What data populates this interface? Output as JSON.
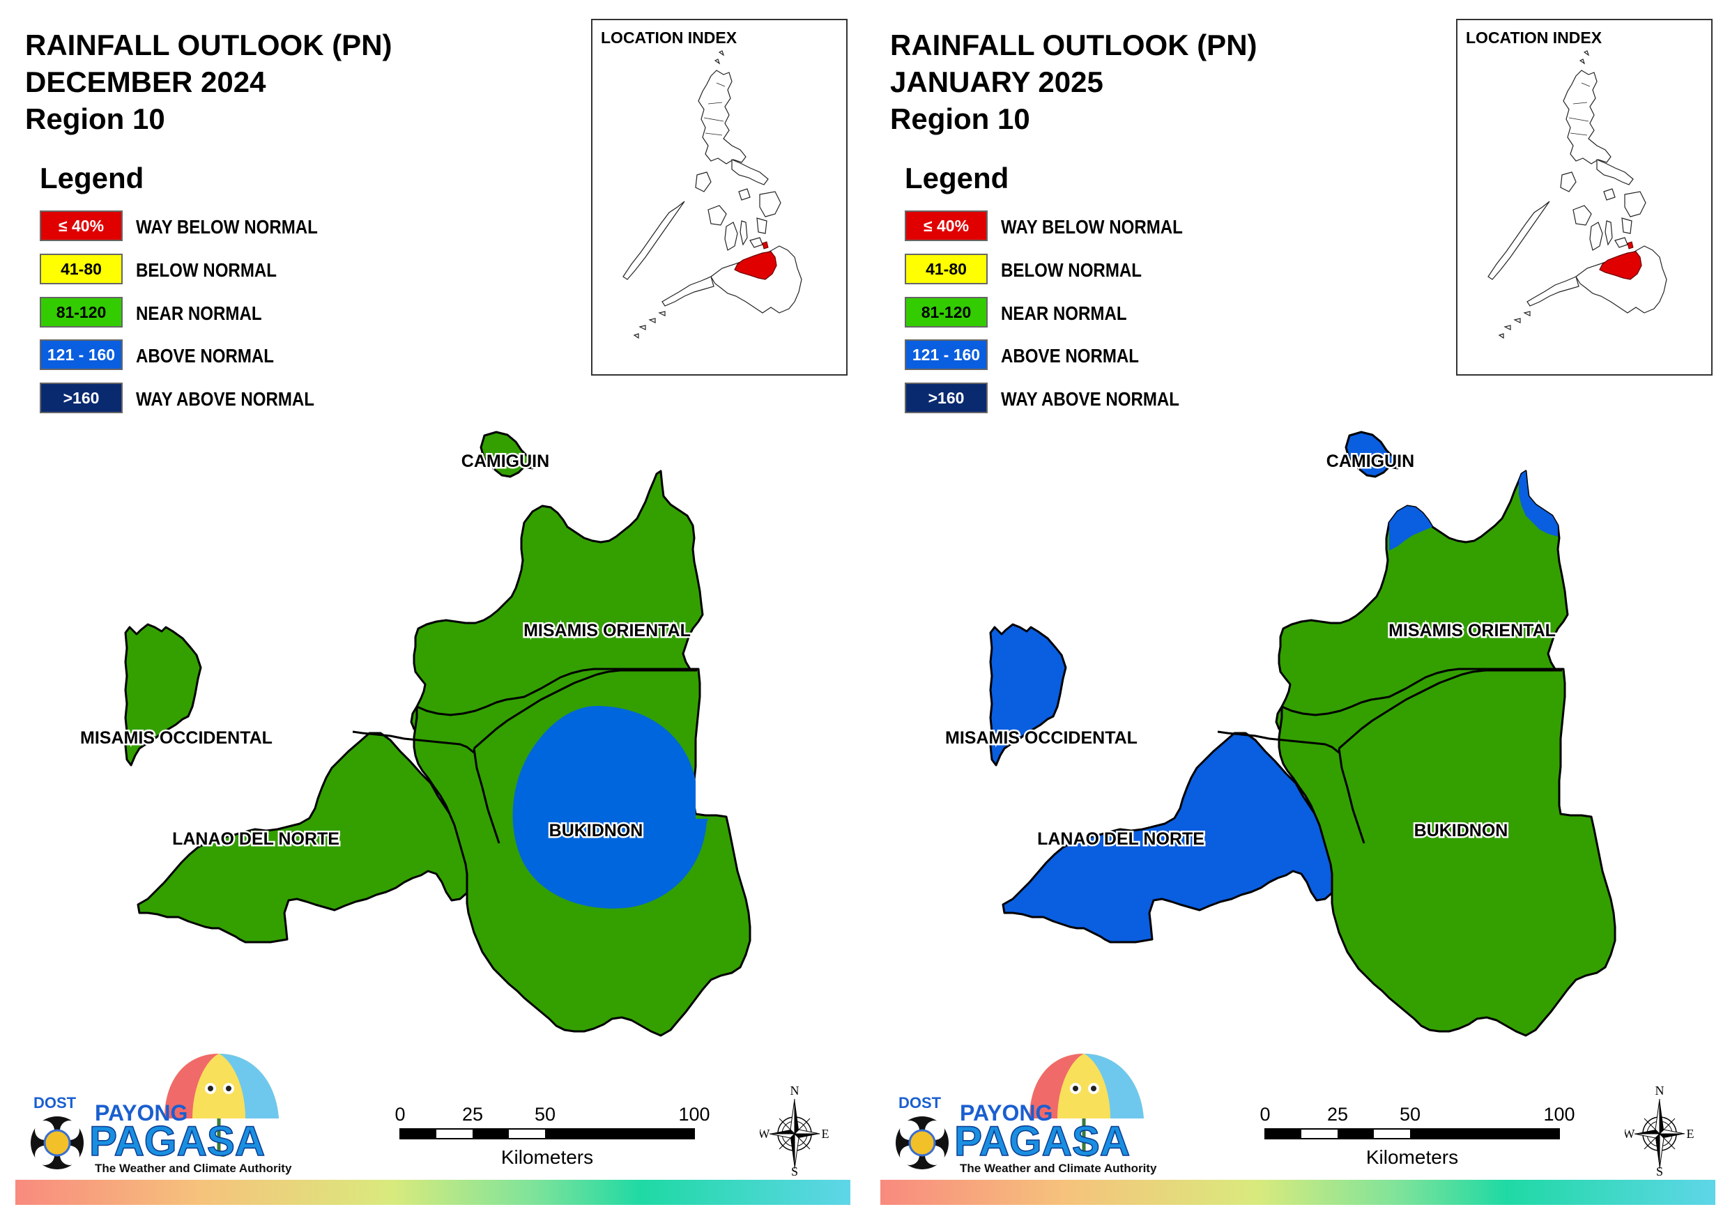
{
  "panels": [
    {
      "title_line1": "RAINFALL OUTLOOK (PN)",
      "title_line2": "DECEMBER 2024",
      "title_line3": "Region 10",
      "colors": {
        "misamis_occidental": "#33a000",
        "lanao_del_norte": "#33a000",
        "misamis_oriental": "#33a000",
        "bukidnon": "#33a000",
        "camiguin": "#33a000",
        "bukidnon_center_zone": "#0066dd"
      }
    },
    {
      "title_line1": "RAINFALL OUTLOOK (PN)",
      "title_line2": "JANUARY 2025",
      "title_line3": "Region 10",
      "colors": {
        "misamis_occidental": "#0a5ee0",
        "lanao_del_norte": "#0a5ee0",
        "misamis_oriental": "#33a000",
        "bukidnon": "#33a000",
        "camiguin": "#0a5ee0",
        "misamis_oriental_north_zone": "#0a5ee0"
      }
    }
  ],
  "legend": {
    "title": "Legend",
    "items": [
      {
        "range": "≤ 40%",
        "label": "WAY BELOW NORMAL",
        "color": "#e00000",
        "text_color": "#ffffff"
      },
      {
        "range": "41-80",
        "label": "BELOW NORMAL",
        "color": "#ffff00",
        "text_color": "#000000"
      },
      {
        "range": "81-120",
        "label": "NEAR NORMAL",
        "color": "#33cc00",
        "text_color": "#000000"
      },
      {
        "range": "121 - 160",
        "label": "ABOVE NORMAL",
        "color": "#0a5ee0",
        "text_color": "#ffffff"
      },
      {
        "range": ">160",
        "label": "WAY ABOVE NORMAL",
        "color": "#0a2a70",
        "text_color": "#ffffff"
      }
    ]
  },
  "inset": {
    "title": "LOCATION INDEX",
    "highlight_color": "#e00000"
  },
  "provinces": {
    "camiguin": "CAMIGUIN",
    "misamis_oriental": "MISAMIS ORIENTAL",
    "misamis_occidental": "MISAMIS OCCIDENTAL",
    "lanao_del_norte": "LANAO DEL NORTE",
    "bukidnon": "BUKIDNON"
  },
  "scale": {
    "ticks": [
      "0",
      "25",
      "50",
      "100"
    ],
    "unit": "Kilometers"
  },
  "compass": {
    "n": "N",
    "s": "S",
    "e": "E",
    "w": "W"
  },
  "logo": {
    "dost": "DOST",
    "payong": "PAYONG",
    "pagasa": "PAGASA",
    "tagline": "The Weather and Climate Authority"
  }
}
